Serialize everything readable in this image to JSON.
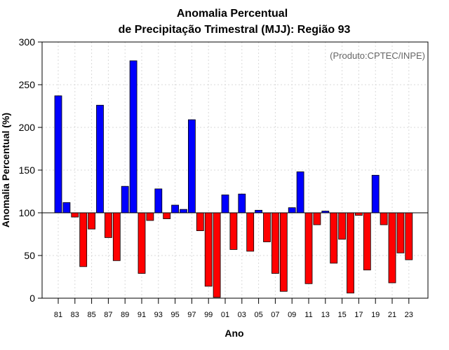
{
  "chart_data": {
    "type": "bar",
    "title": "Anomalia Percentual",
    "subtitle": "de Precipitação Trimestral (MJJ): Região 93",
    "xlabel": "Ano",
    "ylabel": "Anomalia Percentual (%)",
    "credit": "(Produto:CPTEC/INPE)",
    "baseline": 100,
    "ylim": [
      0,
      300
    ],
    "yticks": [
      0,
      50,
      100,
      150,
      200,
      250,
      300
    ],
    "grid": true,
    "categories": [
      "81",
      "82",
      "83",
      "84",
      "85",
      "86",
      "87",
      "88",
      "89",
      "90",
      "91",
      "92",
      "93",
      "94",
      "95",
      "96",
      "97",
      "98",
      "99",
      "00",
      "01",
      "02",
      "03",
      "04",
      "05",
      "06",
      "07",
      "08",
      "09",
      "10",
      "11",
      "12",
      "13",
      "14",
      "15",
      "16",
      "17",
      "18",
      "19",
      "20",
      "21",
      "22",
      "23"
    ],
    "xtick_labels": [
      "81",
      "83",
      "85",
      "87",
      "89",
      "91",
      "93",
      "95",
      "97",
      "99",
      "01",
      "03",
      "05",
      "07",
      "09",
      "11",
      "13",
      "15",
      "17",
      "19",
      "21",
      "23"
    ],
    "values": [
      237,
      112,
      95,
      37,
      81,
      226,
      71,
      44,
      131,
      278,
      29,
      91,
      128,
      93,
      109,
      104,
      209,
      79,
      14,
      1,
      121,
      57,
      122,
      55,
      103,
      66,
      29,
      8,
      106,
      148,
      17,
      86,
      102,
      41,
      69,
      6,
      97,
      33,
      144,
      86,
      18,
      53,
      45
    ],
    "colors": {
      "above": "#0000ff",
      "below": "#ff0000",
      "bar_edge": "#000000"
    }
  }
}
